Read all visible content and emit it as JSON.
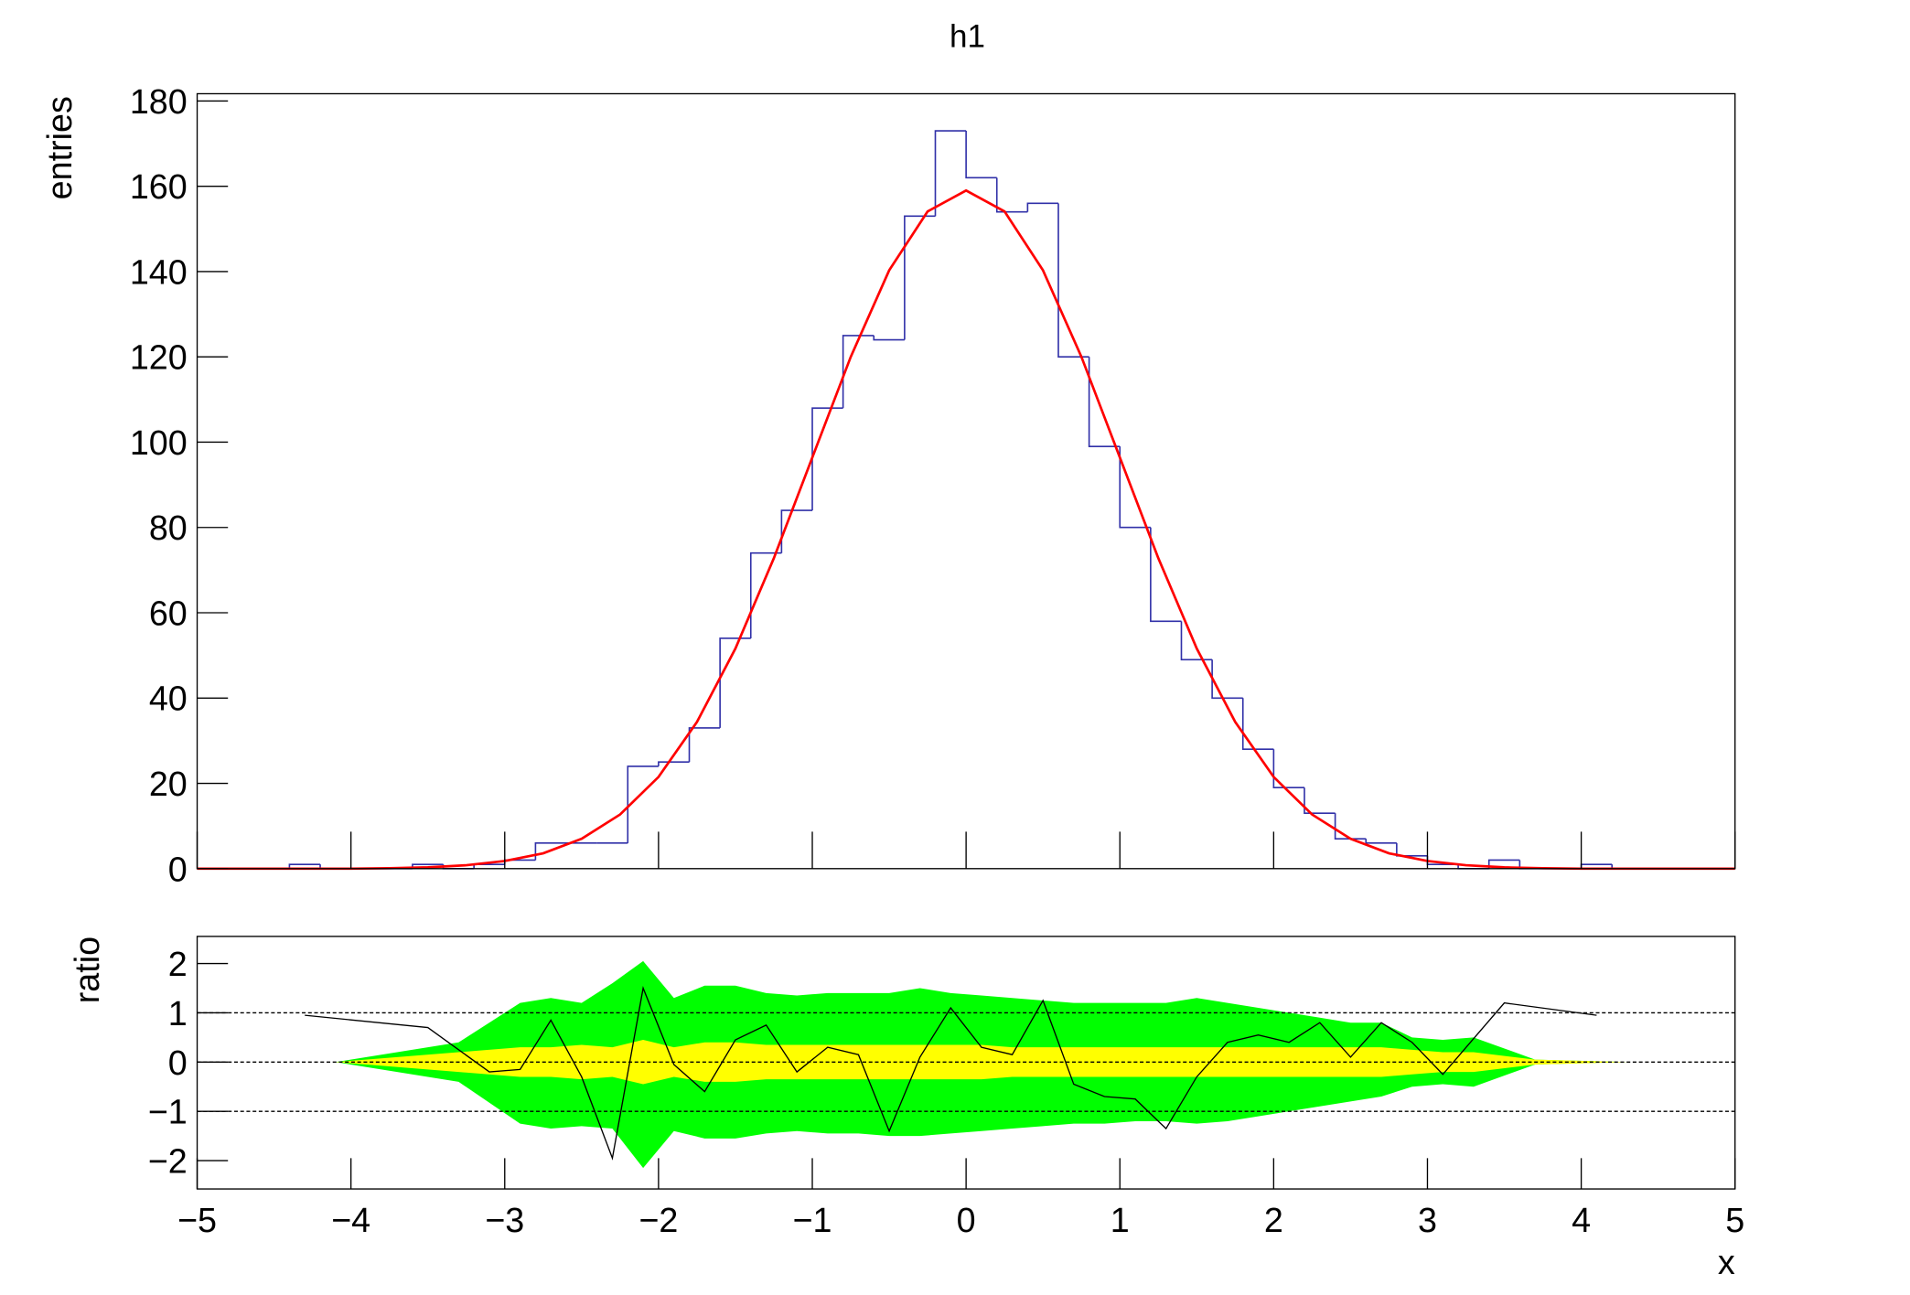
{
  "chart_data": [
    {
      "type": "histogram",
      "title": "h1",
      "y_label": "entries",
      "color": "#3030a8",
      "bins": [
        -5,
        -4.8,
        -4.6,
        -4.4,
        -4.2,
        -4,
        -3.8,
        -3.6,
        -3.4,
        -3.2,
        -3,
        -2.8,
        -2.6,
        -2.4,
        -2.2,
        -2,
        -1.8,
        -1.6,
        -1.4,
        -1.2,
        -1,
        -0.8,
        -0.6,
        -0.4,
        -0.2,
        0,
        0.2,
        0.4,
        0.6,
        0.8,
        1,
        1.2,
        1.4,
        1.6,
        1.8,
        2,
        2.2,
        2.4,
        2.6,
        2.8,
        3,
        3.2,
        3.4,
        3.6,
        3.8,
        4,
        4.2,
        4.4,
        4.6,
        4.8,
        5
      ],
      "values": [
        0,
        0,
        0,
        1,
        0,
        0,
        0,
        1,
        0,
        1,
        2,
        6,
        6,
        6,
        24,
        25,
        33,
        54,
        74,
        84,
        108,
        125,
        124,
        153,
        173,
        162,
        154,
        156,
        120,
        99,
        80,
        58,
        49,
        40,
        28,
        19,
        13,
        7,
        6,
        3,
        1,
        0,
        2,
        0,
        0,
        1,
        0,
        0,
        0,
        0
      ],
      "fit": {
        "color": "#ff0000",
        "x": [
          -5,
          -4.75,
          -4.5,
          -4.25,
          -4,
          -3.75,
          -3.5,
          -3.25,
          -3,
          -2.75,
          -2.5,
          -2.25,
          -2,
          -1.75,
          -1.5,
          -1.25,
          -1,
          -0.75,
          -0.5,
          -0.25,
          0,
          0.25,
          0.5,
          0.75,
          1,
          1.25,
          1.5,
          1.75,
          2,
          2.25,
          2.5,
          2.75,
          3,
          3.25,
          3.5,
          3.75,
          4,
          4.25,
          4.5,
          4.75,
          5
        ],
        "values": [
          0,
          0,
          0,
          0,
          0,
          0.1,
          0.3,
          0.8,
          1.8,
          3.6,
          7.0,
          12.7,
          21.5,
          34.4,
          51.6,
          72.8,
          96.4,
          120.0,
          140.3,
          154.1,
          159,
          154.1,
          140.3,
          120.0,
          96.4,
          72.8,
          51.6,
          34.4,
          21.5,
          12.7,
          7.0,
          3.6,
          1.8,
          0.8,
          0.3,
          0.1,
          0,
          0,
          0,
          0,
          0
        ]
      },
      "xlim": [
        -5,
        5
      ],
      "ylim": [
        0,
        181.7
      ],
      "yticks": [
        0,
        20,
        40,
        60,
        80,
        100,
        120,
        140,
        160,
        180
      ]
    },
    {
      "type": "ratio",
      "y_label": "ratio",
      "x_label": "x",
      "color": "#000000",
      "x": [
        -4.3,
        -3.5,
        -3.1,
        -2.9,
        -2.7,
        -2.5,
        -2.3,
        -2.1,
        -1.9,
        -1.7,
        -1.5,
        -1.3,
        -1.1,
        -0.9,
        -0.7,
        -0.5,
        -0.3,
        -0.1,
        0.1,
        0.3,
        0.5,
        0.7,
        0.9,
        1.1,
        1.3,
        1.5,
        1.7,
        1.9,
        2.1,
        2.3,
        2.5,
        2.7,
        2.9,
        3.1,
        3.5,
        4.1
      ],
      "values": [
        0.95,
        0.7,
        -0.2,
        -0.15,
        0.85,
        -0.3,
        -1.95,
        1.5,
        -0.05,
        -0.6,
        0.45,
        0.75,
        -0.2,
        0.3,
        0.15,
        -1.4,
        0.1,
        1.1,
        0.3,
        0.15,
        1.25,
        -0.45,
        -0.7,
        -0.75,
        -1.35,
        -0.3,
        0.4,
        0.55,
        0.4,
        0.8,
        0.1,
        0.8,
        0.4,
        -0.25,
        1.2,
        0.95
      ],
      "band_x": [
        -4.1,
        -3.3,
        -2.9,
        -2.7,
        -2.5,
        -2.3,
        -2.1,
        -1.9,
        -1.7,
        -1.5,
        -1.3,
        -1.1,
        -0.9,
        -0.7,
        -0.5,
        -0.3,
        -0.1,
        0.1,
        0.3,
        0.5,
        0.7,
        0.9,
        1.1,
        1.3,
        1.5,
        1.7,
        1.9,
        2.1,
        2.3,
        2.5,
        2.7,
        2.9,
        3.1,
        3.3,
        3.7,
        4.3
      ],
      "bands": [
        {
          "color": "#00ff00",
          "high": [
            0,
            0.4,
            1.2,
            1.3,
            1.2,
            1.6,
            2.05,
            1.3,
            1.55,
            1.55,
            1.4,
            1.35,
            1.4,
            1.4,
            1.4,
            1.5,
            1.4,
            1.35,
            1.3,
            1.25,
            1.2,
            1.2,
            1.2,
            1.2,
            1.3,
            1.2,
            1.1,
            1.0,
            0.9,
            0.8,
            0.8,
            0.5,
            0.45,
            0.5,
            0.05,
            0
          ],
          "low": [
            0,
            -0.4,
            -1.25,
            -1.35,
            -1.3,
            -1.35,
            -2.15,
            -1.4,
            -1.55,
            -1.55,
            -1.45,
            -1.4,
            -1.45,
            -1.45,
            -1.5,
            -1.5,
            -1.45,
            -1.4,
            -1.35,
            -1.3,
            -1.25,
            -1.25,
            -1.2,
            -1.2,
            -1.25,
            -1.2,
            -1.1,
            -1.0,
            -0.9,
            -0.8,
            -0.7,
            -0.5,
            -0.45,
            -0.5,
            -0.05,
            0
          ]
        },
        {
          "color": "#ffff00",
          "high": [
            0,
            0.2,
            0.3,
            0.3,
            0.35,
            0.3,
            0.45,
            0.3,
            0.4,
            0.4,
            0.35,
            0.35,
            0.35,
            0.35,
            0.35,
            0.35,
            0.35,
            0.35,
            0.3,
            0.3,
            0.3,
            0.3,
            0.3,
            0.3,
            0.3,
            0.3,
            0.3,
            0.3,
            0.3,
            0.3,
            0.3,
            0.25,
            0.2,
            0.2,
            0.05,
            0
          ],
          "low": [
            0,
            -0.2,
            -0.3,
            -0.3,
            -0.35,
            -0.3,
            -0.45,
            -0.3,
            -0.4,
            -0.4,
            -0.35,
            -0.35,
            -0.35,
            -0.35,
            -0.35,
            -0.35,
            -0.35,
            -0.35,
            -0.3,
            -0.3,
            -0.3,
            -0.3,
            -0.3,
            -0.3,
            -0.3,
            -0.3,
            -0.3,
            -0.3,
            -0.3,
            -0.3,
            -0.3,
            -0.25,
            -0.2,
            -0.2,
            -0.05,
            0
          ]
        }
      ],
      "reference_lines": [
        -1,
        0,
        1
      ],
      "xlim": [
        -5,
        5
      ],
      "ylim": [
        -2.575,
        2.55
      ],
      "xticks": [
        {
          "value": -5,
          "label": "−5"
        },
        {
          "value": -4,
          "label": "−4"
        },
        {
          "value": -3,
          "label": "−3"
        },
        {
          "value": -2,
          "label": "−2"
        },
        {
          "value": -1,
          "label": "−1"
        },
        0,
        1,
        2,
        3,
        4,
        5
      ],
      "yticks": [
        {
          "value": -2,
          "label": "−2"
        },
        {
          "value": -1,
          "label": "−1"
        },
        0,
        1,
        2
      ]
    }
  ]
}
